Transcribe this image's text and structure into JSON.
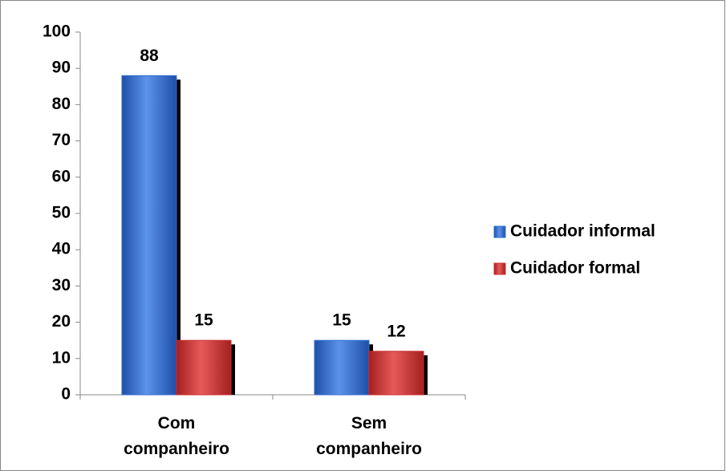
{
  "chart_data": {
    "type": "bar",
    "categories": [
      "Com companheiro",
      "Sem companheiro"
    ],
    "series": [
      {
        "name": "Cuidador informal",
        "color": "#2f6fd0",
        "values": [
          88,
          15
        ]
      },
      {
        "name": "Cuidador formal",
        "color": "#cc2e2e",
        "values": [
          15,
          12
        ]
      }
    ],
    "ylim": [
      0,
      100
    ],
    "yticks": [
      0,
      10,
      20,
      30,
      40,
      50,
      60,
      70,
      80,
      90,
      100
    ],
    "legend": "right"
  }
}
